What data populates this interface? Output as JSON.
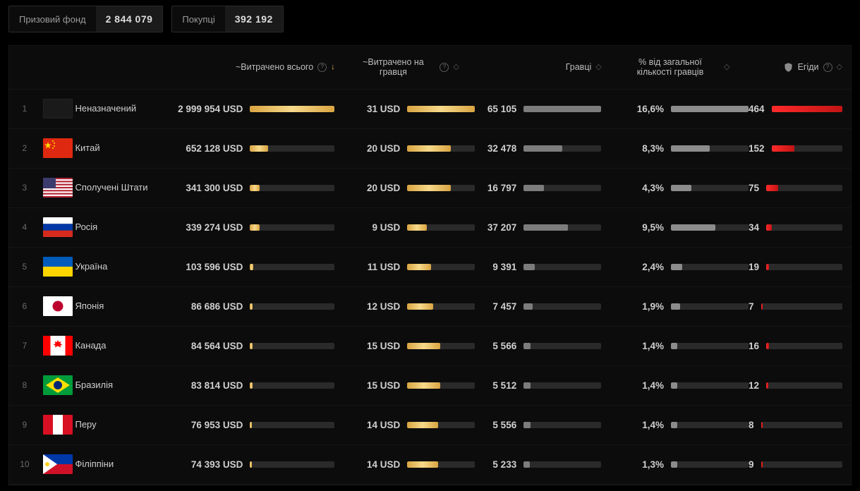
{
  "stats": {
    "prize_label": "Призовий фонд",
    "prize_value": "2 844 079",
    "buyers_label": "Покупці",
    "buyers_value": "392 192"
  },
  "columns": {
    "spent": "~Витрачено всього",
    "per_player": "~Витрачено на гравця",
    "players": "Гравці",
    "pct": "% від загальної кількості гравців",
    "aegis": "Егіди"
  },
  "bar_colors": {
    "gold": "linear-gradient(90deg,#d9a441,#f6d98a,#d9a441)",
    "grey": "#7c7c7c",
    "red": "linear-gradient(90deg,#ff2a2a,#c21414)",
    "track": "#2a2a2a"
  },
  "max": {
    "spent": 2999954,
    "per_player": 31,
    "players": 65105,
    "pct": 16.6,
    "aegis": 464
  },
  "rows": [
    {
      "rank": "1",
      "flag": "blank",
      "name": "Неназначений",
      "spent": "2 999 954 USD",
      "spent_v": 2999954,
      "per": "31 USD",
      "per_v": 31,
      "players": "65 105",
      "players_v": 65105,
      "pct": "16,6%",
      "pct_v": 16.6,
      "aegis": "464",
      "aegis_v": 464
    },
    {
      "rank": "2",
      "flag": "cn",
      "name": "Китай",
      "spent": "652 128 USD",
      "spent_v": 652128,
      "per": "20 USD",
      "per_v": 20,
      "players": "32 478",
      "players_v": 32478,
      "pct": "8,3%",
      "pct_v": 8.3,
      "aegis": "152",
      "aegis_v": 152
    },
    {
      "rank": "3",
      "flag": "us",
      "name": "Сполучені Штати",
      "spent": "341 300 USD",
      "spent_v": 341300,
      "per": "20 USD",
      "per_v": 20,
      "players": "16 797",
      "players_v": 16797,
      "pct": "4,3%",
      "pct_v": 4.3,
      "aegis": "75",
      "aegis_v": 75
    },
    {
      "rank": "4",
      "flag": "ru",
      "name": "Росія",
      "spent": "339 274 USD",
      "spent_v": 339274,
      "per": "9 USD",
      "per_v": 9,
      "players": "37 207",
      "players_v": 37207,
      "pct": "9,5%",
      "pct_v": 9.5,
      "aegis": "34",
      "aegis_v": 34
    },
    {
      "rank": "5",
      "flag": "ua",
      "name": "Україна",
      "spent": "103 596 USD",
      "spent_v": 103596,
      "per": "11 USD",
      "per_v": 11,
      "players": "9 391",
      "players_v": 9391,
      "pct": "2,4%",
      "pct_v": 2.4,
      "aegis": "19",
      "aegis_v": 19
    },
    {
      "rank": "6",
      "flag": "jp",
      "name": "Японія",
      "spent": "86 686 USD",
      "spent_v": 86686,
      "per": "12 USD",
      "per_v": 12,
      "players": "7 457",
      "players_v": 7457,
      "pct": "1,9%",
      "pct_v": 1.9,
      "aegis": "7",
      "aegis_v": 7
    },
    {
      "rank": "7",
      "flag": "ca",
      "name": "Канада",
      "spent": "84 564 USD",
      "spent_v": 84564,
      "per": "15 USD",
      "per_v": 15,
      "players": "5 566",
      "players_v": 5566,
      "pct": "1,4%",
      "pct_v": 1.4,
      "aegis": "16",
      "aegis_v": 16
    },
    {
      "rank": "8",
      "flag": "br",
      "name": "Бразилія",
      "spent": "83 814 USD",
      "spent_v": 83814,
      "per": "15 USD",
      "per_v": 15,
      "players": "5 512",
      "players_v": 5512,
      "pct": "1,4%",
      "pct_v": 1.4,
      "aegis": "12",
      "aegis_v": 12
    },
    {
      "rank": "9",
      "flag": "pe",
      "name": "Перу",
      "spent": "76 953 USD",
      "spent_v": 76953,
      "per": "14 USD",
      "per_v": 14,
      "players": "5 556",
      "players_v": 5556,
      "pct": "1,4%",
      "pct_v": 1.4,
      "aegis": "8",
      "aegis_v": 8
    },
    {
      "rank": "10",
      "flag": "ph",
      "name": "Філіппіни",
      "spent": "74 393 USD",
      "spent_v": 74393,
      "per": "14 USD",
      "per_v": 14,
      "players": "5 233",
      "players_v": 5233,
      "pct": "1,3%",
      "pct_v": 1.3,
      "aegis": "9",
      "aegis_v": 9
    }
  ]
}
